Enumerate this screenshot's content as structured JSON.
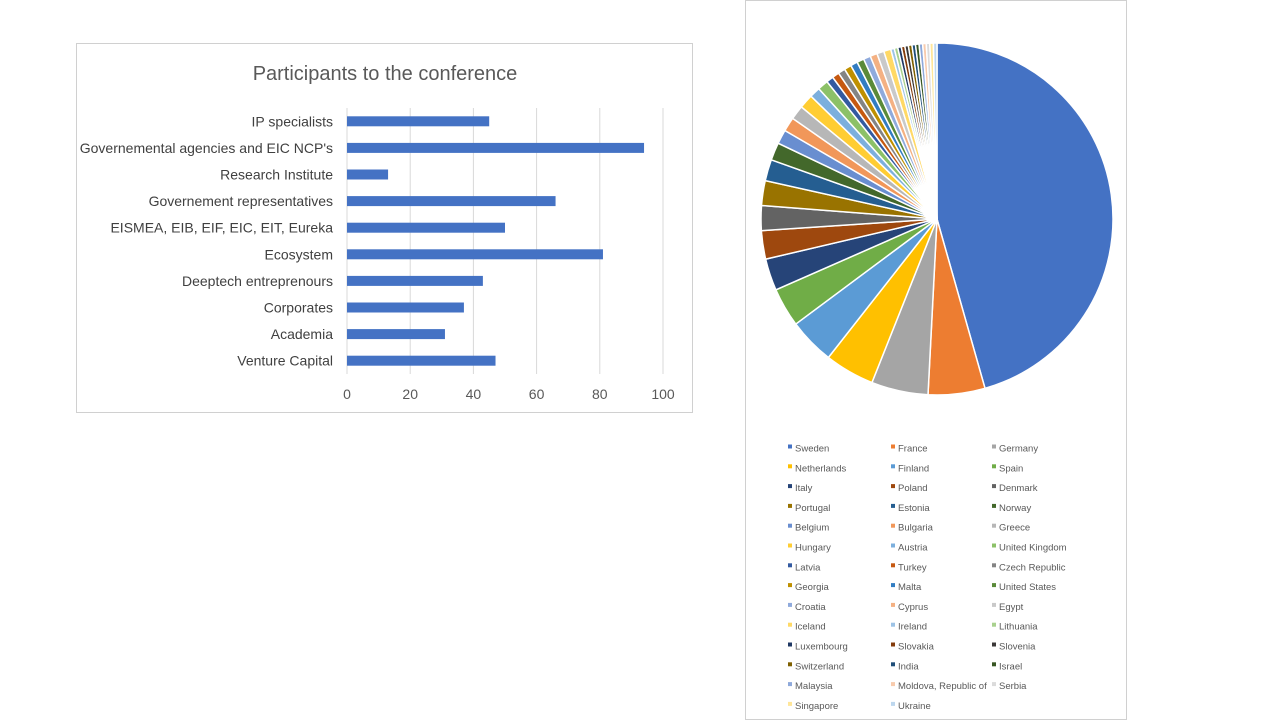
{
  "charts": {
    "bar_title": "Participants to the conference"
  },
  "chart_data": [
    {
      "type": "bar",
      "orientation": "horizontal",
      "title": "Participants to the conference",
      "categories": [
        "IP specialists",
        "Governemental agencies and EIC NCP's",
        "Research Institute",
        "Governement representatives",
        "EISMEA, EIB, EIF, EIC, EIT, Eureka",
        "Ecosystem",
        "Deeptech entreprenours",
        "Corporates",
        "Academia",
        "Venture Capital"
      ],
      "values": [
        45,
        94,
        13,
        66,
        50,
        81,
        43,
        37,
        31,
        47
      ],
      "xlim": [
        0,
        100
      ],
      "x_ticks": [
        "0",
        "20",
        "40",
        "60",
        "80",
        "100"
      ],
      "grid": true,
      "bar_color": "#4472C4",
      "xlabel": "",
      "ylabel": ""
    },
    {
      "type": "pie",
      "title": "",
      "legend_position": "bottom",
      "labels": [
        "Sweden",
        "France",
        "Germany",
        "Netherlands",
        "Finland",
        "Spain",
        "Italy",
        "Poland",
        "Denmark",
        "Portugal",
        "Estonia",
        "Norway",
        "Belgium",
        "Bulgaria",
        "Greece",
        "Hungary",
        "Austria",
        "United Kingdom",
        "Latvia",
        "Turkey",
        "Czech Republic",
        "Georgia",
        "Malta",
        "United States",
        "Croatia",
        "Cyprus",
        "Egypt",
        "Iceland",
        "Ireland",
        "Lithuania",
        "Luxembourg",
        "Slovakia",
        "Slovenia",
        "Switzerland",
        "India",
        "Israel",
        "Malaysia",
        "Moldova, Republic of",
        "Serbia",
        "Singapore",
        "Ukraine"
      ],
      "values": [
        140,
        16,
        16,
        14,
        13,
        11,
        9,
        8,
        7,
        7,
        6,
        5,
        4,
        4,
        4,
        4,
        3,
        3,
        2,
        2,
        2,
        2,
        2,
        2,
        2,
        2,
        2,
        2,
        1,
        1,
        1,
        1,
        1,
        1,
        1,
        1,
        1,
        1,
        1,
        1,
        1
      ],
      "colors": [
        "#4472C4",
        "#ED7D31",
        "#A5A5A5",
        "#FFC000",
        "#5B9BD5",
        "#70AD47",
        "#264478",
        "#9E480E",
        "#636363",
        "#997300",
        "#255E91",
        "#43682B",
        "#698ED0",
        "#F1975A",
        "#B7B7B7",
        "#FFCD33",
        "#7CAFDD",
        "#8CC168",
        "#335AA1",
        "#C65911",
        "#848484",
        "#BF9000",
        "#327DC2",
        "#5A8A39",
        "#8FAADC",
        "#F4B183",
        "#C9C9C9",
        "#FFD966",
        "#9DC3E6",
        "#A9D18E",
        "#1F3864",
        "#843C0C",
        "#3B3838",
        "#7F6000",
        "#1F4E79",
        "#375623",
        "#8EA9DB",
        "#F8CBAD",
        "#DBDBDB",
        "#FFE699",
        "#BDD7EE"
      ]
    }
  ]
}
